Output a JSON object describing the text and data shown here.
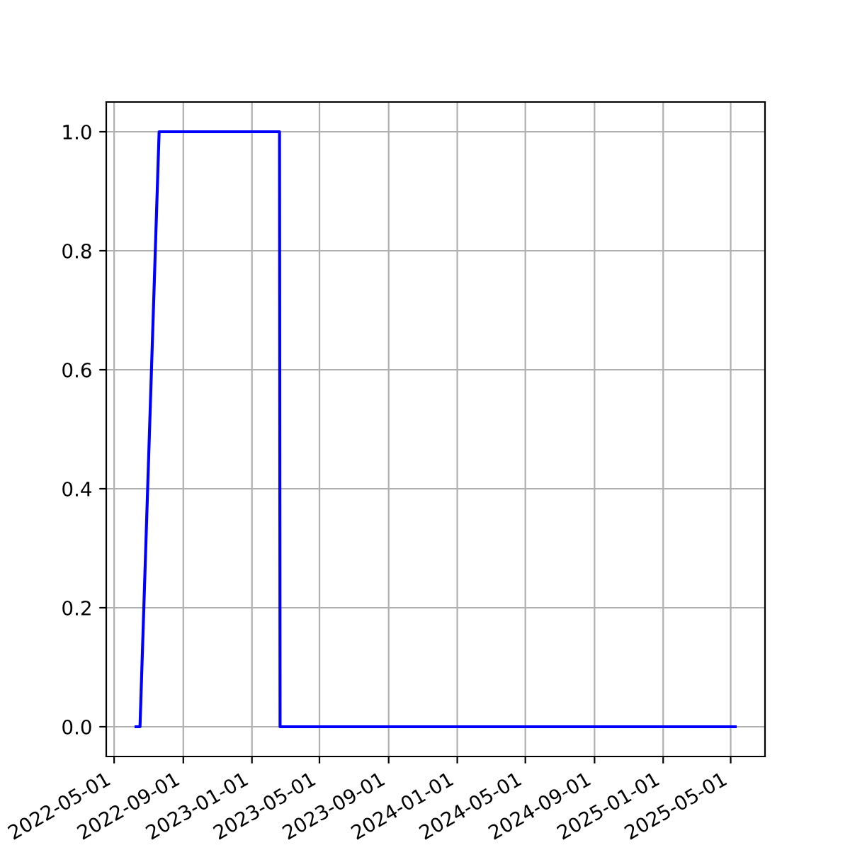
{
  "chart_data": {
    "type": "line",
    "x": [
      "2022-06-09",
      "2022-06-16",
      "2022-07-20",
      "2023-02-19",
      "2023-02-20",
      "2025-05-09"
    ],
    "series": [
      {
        "color": "#0000ff",
        "values": [
          0,
          0,
          1,
          1,
          0,
          0
        ]
      }
    ],
    "xlim": [
      "2022-04-17",
      "2025-07-01"
    ],
    "xticks": [
      {
        "value": "2022-05-01",
        "label": "2022-05-01"
      },
      {
        "value": "2022-09-01",
        "label": "2022-09-01"
      },
      {
        "value": "2023-01-01",
        "label": "2023-01-01"
      },
      {
        "value": "2023-05-01",
        "label": "2023-05-01"
      },
      {
        "value": "2023-09-01",
        "label": "2023-09-01"
      },
      {
        "value": "2024-01-01",
        "label": "2024-01-01"
      },
      {
        "value": "2024-05-01",
        "label": "2024-05-01"
      },
      {
        "value": "2024-09-01",
        "label": "2024-09-01"
      },
      {
        "value": "2025-01-01",
        "label": "2025-01-01"
      },
      {
        "value": "2025-05-01",
        "label": "2025-05-01"
      }
    ],
    "ylim": [
      -0.05,
      1.05
    ],
    "yticks": [
      {
        "value": 0,
        "label": "0.0"
      },
      {
        "value": 0.2,
        "label": "0.2"
      },
      {
        "value": 0.4,
        "label": "0.4"
      },
      {
        "value": 0.6,
        "label": "0.6"
      },
      {
        "value": 0.8,
        "label": "0.8"
      },
      {
        "value": 1.0,
        "label": "1.0"
      }
    ],
    "grid": true
  }
}
